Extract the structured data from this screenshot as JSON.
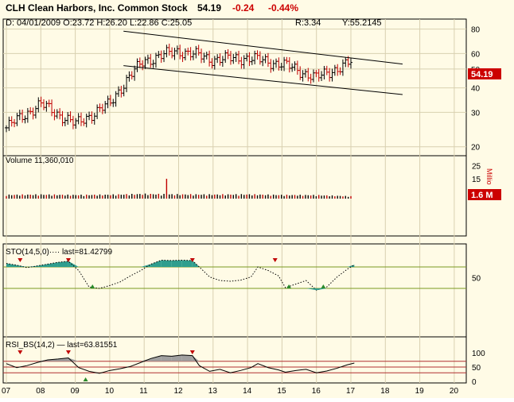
{
  "header": {
    "title": "CLH Clean Harbors, Inc. Common Stock",
    "last": "54.19",
    "change": "-0.24",
    "change_pct": "-0.44%",
    "ohlc": "D: 04/01/2009 O:23.72 H:26.20 L:22.86 C:25.05",
    "r_value": "R:3.34",
    "y_value": "Y:55.2145"
  },
  "colors": {
    "background": "#fffbe6",
    "panel_border": "#000000",
    "grid": "#d8d0b0",
    "bar": "#000000",
    "bar_down": "#c00000",
    "price_badge": "#cc0000",
    "stoch_fill": "#2f9e8e",
    "rsi_fill": "#a0a0a0",
    "level_line": "#7a9a20",
    "rsi_level": "#b03030",
    "arrow_down": "#c00000",
    "arrow_up": "#2a8a2a"
  },
  "chart_data": [
    {
      "type": "candlestick",
      "panel": "price",
      "title": "",
      "x": [
        "07",
        "08",
        "09",
        "10",
        "11",
        "12",
        "13",
        "14",
        "15",
        "16",
        "17",
        "18",
        "19",
        "20"
      ],
      "y_ticks": [
        20,
        30,
        40,
        50,
        60,
        80
      ],
      "y_scale": "log",
      "ylim": [
        18,
        90
      ],
      "grid": true,
      "last_label": "54.19",
      "monthly_closes": [
        25,
        33,
        26,
        33,
        55,
        62,
        56,
        57,
        53,
        45,
        54
      ],
      "channel": {
        "upper": [
          [
            10.4,
            78
          ],
          [
            18.5,
            53
          ]
        ],
        "lower": [
          [
            10.4,
            52
          ],
          [
            18.5,
            37
          ]
        ]
      }
    },
    {
      "type": "bar",
      "panel": "volume",
      "title": "Volume 11,360,010",
      "unit_label": "Millio",
      "y_ticks": [
        25,
        15,
        5
      ],
      "last_label": "1.6 M",
      "monthly_volume": [
        2.6,
        2.8,
        2.5,
        2.7,
        3.2,
        2.9,
        2.8,
        2.9,
        2.5,
        2.4,
        1.6
      ]
    },
    {
      "type": "line",
      "panel": "stochastic",
      "title": "STO(14,5,0)···· last=81.42799",
      "y_ticks": [
        50
      ],
      "ylim": [
        0,
        100
      ],
      "levels": [
        80,
        20
      ],
      "series": [
        {
          "x": [
            7.0,
            7.3,
            7.6,
            7.9,
            8.2,
            8.5,
            8.8,
            9.1,
            9.4,
            9.7,
            10.0,
            10.3,
            10.6,
            10.9,
            11.2,
            11.5,
            11.8,
            12.1,
            12.4,
            12.6,
            12.9,
            13.2,
            13.5,
            13.8,
            14.1,
            14.3,
            14.6,
            14.9,
            15.1,
            15.4,
            15.7,
            16.0,
            16.3,
            16.6,
            16.9,
            17.1
          ],
          "values": [
            90,
            85,
            78,
            83,
            88,
            93,
            96,
            70,
            24,
            20,
            28,
            38,
            55,
            70,
            88,
            99,
            98,
            99,
            98,
            80,
            52,
            42,
            40,
            43,
            52,
            80,
            70,
            55,
            22,
            32,
            42,
            15,
            24,
            52,
            74,
            86
          ]
        }
      ]
    },
    {
      "type": "line",
      "panel": "rsi",
      "title": "RSI_BS(14,2) — last=63.81551",
      "y_ticks": [
        100,
        50,
        0
      ],
      "ylim": [
        0,
        100
      ],
      "levels": [
        70,
        50,
        30
      ],
      "series": [
        {
          "x": [
            7.0,
            7.3,
            7.6,
            7.9,
            8.2,
            8.5,
            8.8,
            9.1,
            9.4,
            9.7,
            10.0,
            10.3,
            10.6,
            10.9,
            11.2,
            11.5,
            11.8,
            12.1,
            12.4,
            12.6,
            12.9,
            13.2,
            13.5,
            13.8,
            14.1,
            14.3,
            14.6,
            14.9,
            15.1,
            15.4,
            15.7,
            16.0,
            16.3,
            16.6,
            16.9,
            17.1
          ],
          "values": [
            62,
            48,
            55,
            66,
            75,
            78,
            82,
            48,
            35,
            28,
            38,
            44,
            52,
            66,
            80,
            90,
            88,
            92,
            90,
            55,
            35,
            42,
            30,
            38,
            48,
            62,
            48,
            40,
            32,
            38,
            42,
            30,
            36,
            46,
            58,
            64
          ]
        }
      ]
    }
  ]
}
